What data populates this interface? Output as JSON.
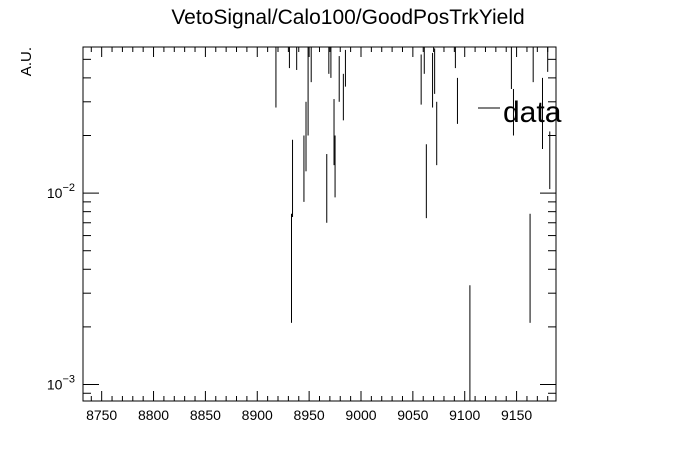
{
  "chart_data": {
    "type": "scatter",
    "title": "VetoSignal/Calo100/GoodPosTrkYield",
    "xlabel": "",
    "ylabel": "A.U.",
    "xlim": [
      8732,
      9188
    ],
    "ylim": [
      0.00082,
      0.058
    ],
    "y_scale": "log",
    "x_ticks": [
      8750,
      8800,
      8850,
      8900,
      8950,
      9000,
      9050,
      9100,
      9150
    ],
    "y_tick_labels": [
      "10^{-2}",
      "10^{-3}"
    ],
    "legend": {
      "entries": [
        "data"
      ],
      "placement": "top-right"
    },
    "grid": false,
    "series": [
      {
        "name": "data",
        "marker": "none",
        "points": [
          {
            "x": 8918,
            "y": 0.046,
            "ylo": 0.028,
            "yhi": 0.058
          },
          {
            "x": 8931,
            "y": 0.058,
            "ylo": 0.045,
            "yhi": 0.058
          },
          {
            "x": 8933,
            "y": 0.0048,
            "ylo": 0.0021,
            "yhi": 0.0078
          },
          {
            "x": 8934,
            "y": 0.0128,
            "ylo": 0.0075,
            "yhi": 0.019
          },
          {
            "x": 8938,
            "y": 0.058,
            "ylo": 0.044,
            "yhi": 0.058
          },
          {
            "x": 8945,
            "y": 0.014,
            "ylo": 0.009,
            "yhi": 0.02
          },
          {
            "x": 8947,
            "y": 0.021,
            "ylo": 0.013,
            "yhi": 0.03
          },
          {
            "x": 8949,
            "y": 0.037,
            "ylo": 0.02,
            "yhi": 0.058
          },
          {
            "x": 8952,
            "y": 0.052,
            "ylo": 0.038,
            "yhi": 0.058
          },
          {
            "x": 8967,
            "y": 0.011,
            "ylo": 0.007,
            "yhi": 0.016
          },
          {
            "x": 8969,
            "y": 0.055,
            "ylo": 0.042,
            "yhi": 0.058
          },
          {
            "x": 8971,
            "y": 0.058,
            "ylo": 0.04,
            "yhi": 0.058
          },
          {
            "x": 8974,
            "y": 0.022,
            "ylo": 0.014,
            "yhi": 0.031
          },
          {
            "x": 8975,
            "y": 0.014,
            "ylo": 0.0095,
            "yhi": 0.02
          },
          {
            "x": 8979,
            "y": 0.042,
            "ylo": 0.03,
            "yhi": 0.052
          },
          {
            "x": 8983,
            "y": 0.033,
            "ylo": 0.024,
            "yhi": 0.042
          },
          {
            "x": 8985,
            "y": 0.046,
            "ylo": 0.036,
            "yhi": 0.056
          },
          {
            "x": 9058,
            "y": 0.041,
            "ylo": 0.029,
            "yhi": 0.053
          },
          {
            "x": 9061,
            "y": 0.053,
            "ylo": 0.042,
            "yhi": 0.058
          },
          {
            "x": 9063,
            "y": 0.012,
            "ylo": 0.0074,
            "yhi": 0.018
          },
          {
            "x": 9069,
            "y": 0.041,
            "ylo": 0.028,
            "yhi": 0.054
          },
          {
            "x": 9071,
            "y": 0.045,
            "ylo": 0.033,
            "yhi": 0.057
          },
          {
            "x": 9073,
            "y": 0.022,
            "ylo": 0.014,
            "yhi": 0.03
          },
          {
            "x": 9091,
            "y": 0.056,
            "ylo": 0.045,
            "yhi": 0.058
          },
          {
            "x": 9093,
            "y": 0.031,
            "ylo": 0.023,
            "yhi": 0.04
          },
          {
            "x": 9105,
            "y": 0.00165,
            "ylo": 0.00082,
            "yhi": 0.0033
          },
          {
            "x": 9145,
            "y": 0.047,
            "ylo": 0.035,
            "yhi": 0.058
          },
          {
            "x": 9147,
            "y": 0.027,
            "ylo": 0.02,
            "yhi": 0.035
          },
          {
            "x": 9163,
            "y": 0.0048,
            "ylo": 0.0021,
            "yhi": 0.0078
          },
          {
            "x": 9166,
            "y": 0.05,
            "ylo": 0.038,
            "yhi": 0.058
          },
          {
            "x": 9175,
            "y": 0.028,
            "ylo": 0.017,
            "yhi": 0.04
          },
          {
            "x": 9180,
            "y": 0.055,
            "ylo": 0.043,
            "yhi": 0.058
          },
          {
            "x": 9182,
            "y": 0.014,
            "ylo": 0.0105,
            "yhi": 0.021
          }
        ]
      }
    ]
  }
}
